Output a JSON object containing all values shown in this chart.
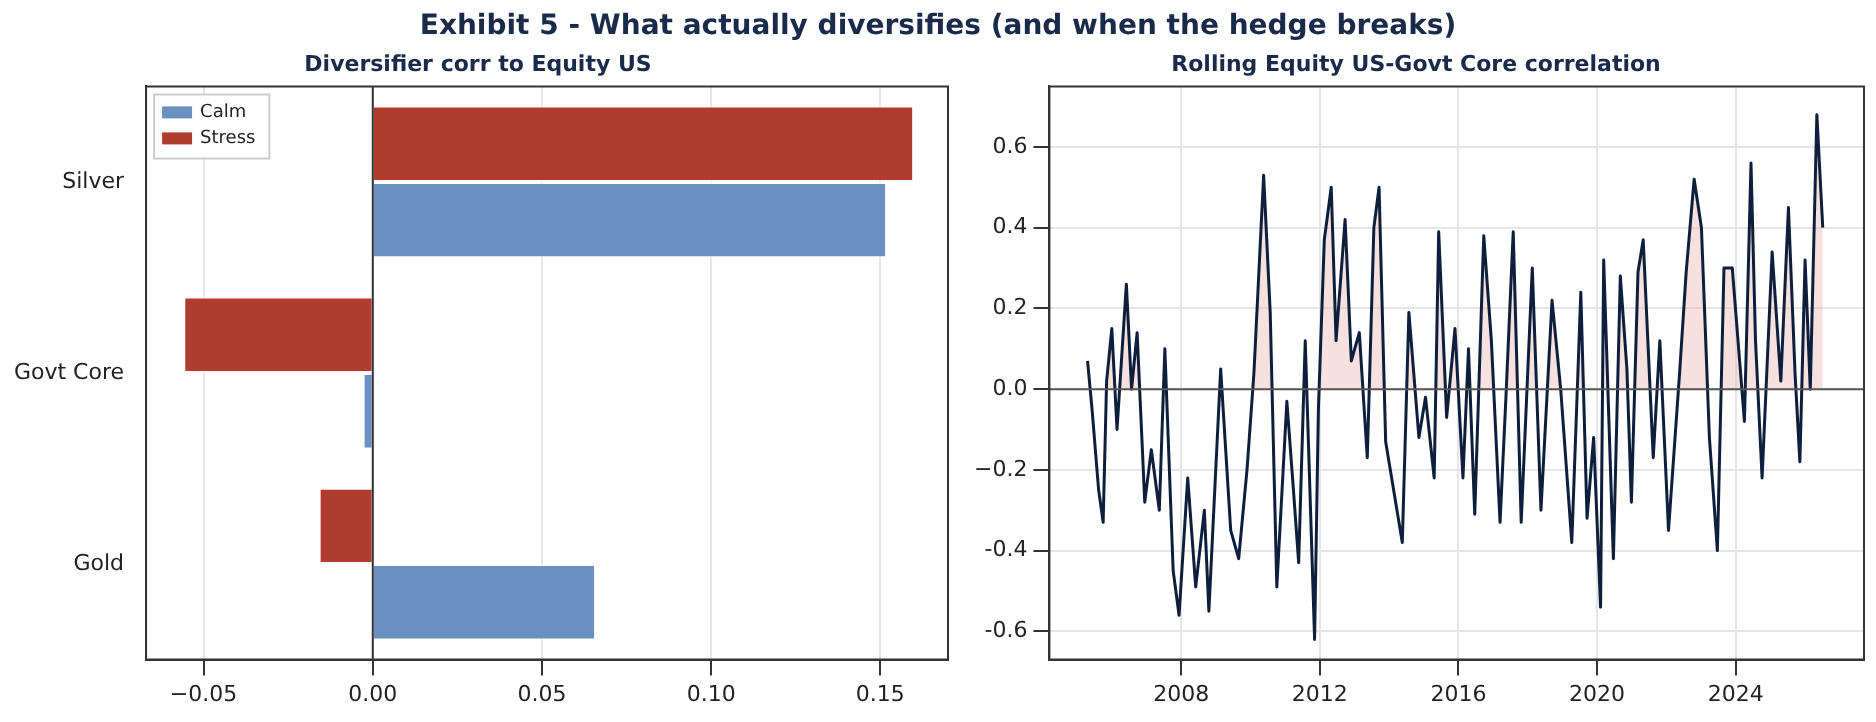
{
  "chart_data": [
    {
      "type": "bar",
      "orientation": "horizontal",
      "title": "Exhibit 5 - What actually diversifies (and when the hedge breaks)",
      "subtitle": "Diversifier corr to Equity US",
      "categories": [
        "Silver",
        "Govt Core",
        "Gold"
      ],
      "series": [
        {
          "name": "Calm",
          "color": "#6b8fc0",
          "values": [
            0.152,
            -0.003,
            0.066
          ]
        },
        {
          "name": "Stress",
          "color": "#b03c2e",
          "values": [
            0.16,
            -0.056,
            -0.016
          ]
        }
      ],
      "xlim": [
        -0.067,
        0.17
      ],
      "xticks": [
        {
          "value": -0.05,
          "label": "−0.05"
        },
        {
          "value": 0,
          "label": "0.00"
        },
        0.05,
        {
          "value": 0.1,
          "label": "0.10"
        },
        0.15
      ],
      "ref_lines": [
        {
          "axis": "x",
          "value": 0,
          "color": "#333333"
        }
      ],
      "grid": "x",
      "legend": "top left"
    },
    {
      "type": "line",
      "title": "Rolling Equity US-Govt Core correlation",
      "x": [
        2005.3,
        2005.43,
        2005.62,
        2005.75,
        2005.85,
        2006.0,
        2006.15,
        2006.42,
        2006.57,
        2006.73,
        2006.95,
        2007.14,
        2007.37,
        2007.53,
        2007.77,
        2007.94,
        2008.19,
        2008.42,
        2008.67,
        2008.8,
        2009.14,
        2009.43,
        2009.66,
        2009.9,
        2010.1,
        2010.38,
        2010.57,
        2010.76,
        2011.05,
        2011.24,
        2011.39,
        2011.58,
        2011.85,
        2011.96,
        2012.13,
        2012.33,
        2012.47,
        2012.73,
        2012.91,
        2013.14,
        2013.37,
        2013.56,
        2013.71,
        2013.9,
        2014.38,
        2014.57,
        2014.86,
        2015.05,
        2015.3,
        2015.43,
        2015.66,
        2015.9,
        2016.13,
        2016.29,
        2016.47,
        2016.73,
        2016.95,
        2017.2,
        2017.37,
        2017.58,
        2017.81,
        2018.13,
        2018.38,
        2018.7,
        2018.95,
        2019.27,
        2019.53,
        2019.71,
        2019.9,
        2020.1,
        2020.19,
        2020.47,
        2020.67,
        2020.86,
        2020.99,
        2021.18,
        2021.33,
        2021.62,
        2021.81,
        2022.06,
        2022.38,
        2022.57,
        2022.8,
        2023.01,
        2023.24,
        2023.47,
        2023.66,
        2023.9,
        2024.25,
        2024.44,
        2024.57,
        2024.76,
        2025.05,
        2025.3,
        2025.52,
        2025.71,
        2025.85,
        2026.0,
        2026.15,
        2026.34,
        2026.51
      ],
      "series": [
        {
          "color": "#0d1f3c",
          "values": [
            0.07,
            -0.05,
            -0.25,
            -0.33,
            0.02,
            0.15,
            -0.1,
            0.26,
            0,
            0.14,
            -0.28,
            -0.15,
            -0.3,
            0.1,
            -0.45,
            -0.56,
            -0.22,
            -0.49,
            -0.3,
            -0.55,
            0.05,
            -0.35,
            -0.42,
            -0.2,
            0.04,
            0.53,
            0.19,
            -0.49,
            -0.03,
            -0.25,
            -0.43,
            0.12,
            -0.62,
            -0.05,
            0.37,
            0.5,
            0.12,
            0.42,
            0.07,
            0.14,
            -0.17,
            0.4,
            0.5,
            -0.13,
            -0.38,
            0.19,
            -0.12,
            -0.02,
            -0.22,
            0.39,
            -0.07,
            0.15,
            -0.22,
            0.1,
            -0.31,
            0.38,
            0.12,
            -0.33,
            -0.02,
            0.39,
            -0.33,
            0.3,
            -0.3,
            0.22,
            0,
            -0.38,
            0.24,
            -0.32,
            -0.12,
            -0.54,
            0.32,
            -0.42,
            0.28,
            0.05,
            -0.28,
            0.29,
            0.37,
            -0.17,
            0.12,
            -0.35,
            0.04,
            0.29,
            0.52,
            0.4,
            -0.12,
            -0.4,
            0.3,
            0.3,
            -0.08,
            0.56,
            0.12,
            -0.22,
            0.34,
            0.02,
            0.45,
            0.04,
            -0.18,
            0.32,
            0,
            0.68,
            0.4
          ]
        }
      ],
      "xlim": [
        2004.2,
        2027.7
      ],
      "xticks": [
        2008,
        2012,
        2016,
        2020,
        2024
      ],
      "ylim": [
        -0.67,
        0.75
      ],
      "yticks": [
        -0.6,
        -0.4,
        {
          "value": -0.2,
          "label": "−0.2"
        },
        {
          "value": 0,
          "label": "0.0"
        },
        0.2,
        0.4,
        0.6
      ],
      "ref_lines": [
        {
          "axis": "y",
          "value": 0,
          "color": "#555555"
        }
      ],
      "grid": true
    }
  ]
}
